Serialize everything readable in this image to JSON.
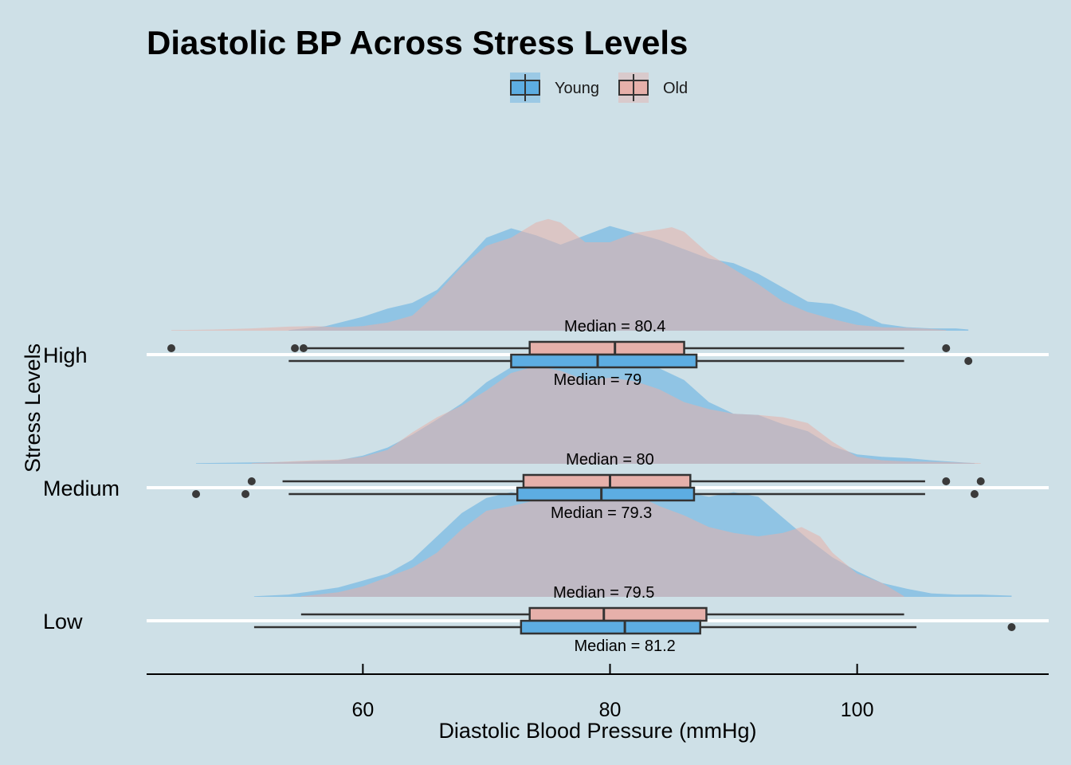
{
  "chart_data": {
    "type": "ridgeline-boxplot",
    "title": "Diastolic BP Across Stress Levels",
    "xlabel": "Diastolic Blood Pressure (mmHg)",
    "ylabel": "Stress Levels",
    "xlim": [
      42.5,
      115.5
    ],
    "xticks": [
      60,
      80,
      100
    ],
    "legend": {
      "position": "top",
      "entries": [
        "Young",
        "Old"
      ]
    },
    "colors": {
      "Young": "#5DADE2",
      "Old": "#E6B0AA",
      "background": "#CEE0E7",
      "outline": "#333333"
    },
    "categories": [
      "High",
      "Medium",
      "Low"
    ],
    "groups": [
      {
        "category": "High",
        "Old": {
          "box": {
            "q1": 73.5,
            "median": 80.4,
            "q3": 86,
            "whisker_low": 55.5,
            "whisker_high": 103.8
          },
          "outliers": [
            44.5,
            54.5,
            55.2,
            107.2
          ],
          "median_label": "Median = 80.4",
          "density": [
            [
              44.5,
              0.005
            ],
            [
              48,
              0.01
            ],
            [
              51,
              0.02
            ],
            [
              54,
              0.035
            ],
            [
              56,
              0.04
            ],
            [
              58,
              0.03
            ],
            [
              60,
              0.04
            ],
            [
              62,
              0.07
            ],
            [
              64,
              0.13
            ],
            [
              66,
              0.32
            ],
            [
              68,
              0.55
            ],
            [
              70,
              0.73
            ],
            [
              72,
              0.8
            ],
            [
              74,
              0.93
            ],
            [
              75,
              0.96
            ],
            [
              76,
              0.93
            ],
            [
              78,
              0.76
            ],
            [
              80,
              0.76
            ],
            [
              82,
              0.84
            ],
            [
              84,
              0.87
            ],
            [
              85,
              0.89
            ],
            [
              86,
              0.85
            ],
            [
              88,
              0.66
            ],
            [
              90,
              0.53
            ],
            [
              92,
              0.4
            ],
            [
              94,
              0.25
            ],
            [
              96,
              0.16
            ],
            [
              98,
              0.1
            ],
            [
              100,
              0.05
            ],
            [
              102,
              0.03
            ],
            [
              104,
              0.025
            ],
            [
              106,
              0.015
            ],
            [
              107.2,
              0.005
            ]
          ]
        },
        "Young": {
          "box": {
            "q1": 72,
            "median": 79,
            "q3": 87,
            "whisker_low": 54,
            "whisker_high": 103.8
          },
          "outliers": [
            109
          ],
          "median_label": "Median = 79",
          "density": [
            [
              54,
              0.005
            ],
            [
              57,
              0.04
            ],
            [
              60,
              0.12
            ],
            [
              62,
              0.19
            ],
            [
              64,
              0.24
            ],
            [
              66,
              0.35
            ],
            [
              68,
              0.57
            ],
            [
              70,
              0.8
            ],
            [
              72,
              0.88
            ],
            [
              74,
              0.82
            ],
            [
              76,
              0.74
            ],
            [
              78,
              0.82
            ],
            [
              80,
              0.9
            ],
            [
              82,
              0.84
            ],
            [
              84,
              0.78
            ],
            [
              86,
              0.7
            ],
            [
              88,
              0.62
            ],
            [
              90,
              0.58
            ],
            [
              92,
              0.49
            ],
            [
              94,
              0.37
            ],
            [
              96,
              0.25
            ],
            [
              98,
              0.23
            ],
            [
              100,
              0.16
            ],
            [
              102,
              0.06
            ],
            [
              104,
              0.03
            ],
            [
              106,
              0.02
            ],
            [
              108,
              0.02
            ],
            [
              109,
              0.01
            ]
          ]
        }
      },
      {
        "category": "Medium",
        "Old": {
          "box": {
            "q1": 73,
            "median": 80,
            "q3": 86.5,
            "whisker_low": 53.5,
            "whisker_high": 105.5
          },
          "outliers": [
            51,
            107.2,
            110
          ],
          "median_label": "Median = 80",
          "density": [
            [
              51,
              0.005
            ],
            [
              54,
              0.02
            ],
            [
              56,
              0.03
            ],
            [
              58,
              0.035
            ],
            [
              60,
              0.06
            ],
            [
              62,
              0.12
            ],
            [
              64,
              0.27
            ],
            [
              66,
              0.4
            ],
            [
              68,
              0.5
            ],
            [
              70,
              0.63
            ],
            [
              72,
              0.78
            ],
            [
              74,
              0.84
            ],
            [
              76,
              0.8
            ],
            [
              78,
              0.72
            ],
            [
              80,
              0.74
            ],
            [
              82,
              0.71
            ],
            [
              84,
              0.64
            ],
            [
              86,
              0.53
            ],
            [
              88,
              0.47
            ],
            [
              90,
              0.43
            ],
            [
              92,
              0.42
            ],
            [
              94,
              0.4
            ],
            [
              96,
              0.35
            ],
            [
              98,
              0.19
            ],
            [
              100,
              0.06
            ],
            [
              102,
              0.03
            ],
            [
              104,
              0.02
            ],
            [
              107,
              0.015
            ],
            [
              110,
              0.005
            ]
          ]
        },
        "Young": {
          "box": {
            "q1": 72.5,
            "median": 79.3,
            "q3": 86.8,
            "whisker_low": 54,
            "whisker_high": 105.5
          },
          "outliers": [
            46.5,
            50.5,
            109.5
          ],
          "median_label": "Median = 79.3",
          "density": [
            [
              46.5,
              0.005
            ],
            [
              50,
              0.01
            ],
            [
              54,
              0.015
            ],
            [
              58,
              0.03
            ],
            [
              60,
              0.07
            ],
            [
              62,
              0.14
            ],
            [
              64,
              0.25
            ],
            [
              66,
              0.38
            ],
            [
              68,
              0.52
            ],
            [
              70,
              0.7
            ],
            [
              72,
              0.83
            ],
            [
              74,
              0.89
            ],
            [
              76,
              0.85
            ],
            [
              78,
              0.82
            ],
            [
              80,
              0.85
            ],
            [
              82,
              0.88
            ],
            [
              84,
              0.82
            ],
            [
              86,
              0.72
            ],
            [
              88,
              0.53
            ],
            [
              90,
              0.43
            ],
            [
              92,
              0.42
            ],
            [
              94,
              0.34
            ],
            [
              96,
              0.28
            ],
            [
              98,
              0.15
            ],
            [
              100,
              0.08
            ],
            [
              102,
              0.06
            ],
            [
              104,
              0.05
            ],
            [
              106,
              0.03
            ],
            [
              108,
              0.015
            ],
            [
              109.5,
              0.005
            ]
          ]
        }
      },
      {
        "category": "Low",
        "Old": {
          "box": {
            "q1": 73.5,
            "median": 79.5,
            "q3": 87.8,
            "whisker_low": 55,
            "whisker_high": 103.8
          },
          "outliers": [],
          "median_label": "Median = 79.5",
          "density": [
            [
              55,
              0.005
            ],
            [
              58,
              0.04
            ],
            [
              60,
              0.09
            ],
            [
              62,
              0.17
            ],
            [
              64,
              0.25
            ],
            [
              66,
              0.38
            ],
            [
              68,
              0.58
            ],
            [
              70,
              0.74
            ],
            [
              72,
              0.78
            ],
            [
              74,
              0.83
            ],
            [
              76,
              0.92
            ],
            [
              78,
              0.96
            ],
            [
              80,
              0.94
            ],
            [
              82,
              0.88
            ],
            [
              84,
              0.78
            ],
            [
              86,
              0.7
            ],
            [
              88,
              0.6
            ],
            [
              90,
              0.55
            ],
            [
              92,
              0.52
            ],
            [
              94,
              0.55
            ],
            [
              95.5,
              0.6
            ],
            [
              97,
              0.52
            ],
            [
              98,
              0.38
            ],
            [
              100,
              0.2
            ],
            [
              102,
              0.12
            ],
            [
              103.8,
              0.005
            ]
          ]
        },
        "Young": {
          "box": {
            "q1": 72.8,
            "median": 81.2,
            "q3": 87.3,
            "whisker_low": 51.2,
            "whisker_high": 104.8
          },
          "outliers": [
            112.5
          ],
          "median_label": "Median = 81.2",
          "density": [
            [
              51.2,
              0.005
            ],
            [
              54,
              0.02
            ],
            [
              58,
              0.08
            ],
            [
              60,
              0.14
            ],
            [
              62,
              0.2
            ],
            [
              64,
              0.32
            ],
            [
              66,
              0.52
            ],
            [
              68,
              0.72
            ],
            [
              70,
              0.85
            ],
            [
              72,
              0.9
            ],
            [
              74,
              0.86
            ],
            [
              76,
              0.84
            ],
            [
              78,
              0.86
            ],
            [
              80,
              0.92
            ],
            [
              82,
              0.96
            ],
            [
              84,
              0.93
            ],
            [
              86,
              0.9
            ],
            [
              88,
              0.86
            ],
            [
              90,
              0.9
            ],
            [
              92,
              0.86
            ],
            [
              94,
              0.68
            ],
            [
              96,
              0.5
            ],
            [
              98,
              0.34
            ],
            [
              100,
              0.22
            ],
            [
              102,
              0.12
            ],
            [
              104,
              0.07
            ],
            [
              106,
              0.03
            ],
            [
              108,
              0.02
            ],
            [
              110,
              0.02
            ],
            [
              112.5,
              0.01
            ]
          ]
        }
      }
    ]
  }
}
